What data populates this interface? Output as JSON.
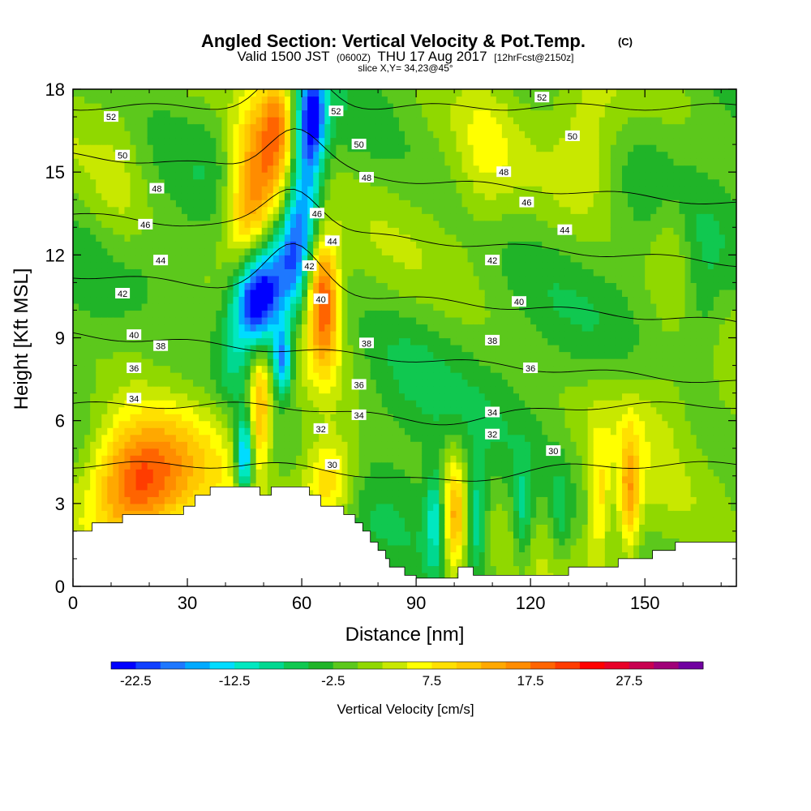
{
  "chart_data": {
    "type": "heatmap",
    "title": "Angled Section: Vertical Velocity & Pot.Temp.",
    "title_unit": "(C)",
    "subtitle_valid": "Valid 1500 JST",
    "subtitle_utc": "(0600Z)",
    "subtitle_date": "THU 17 Aug 2017",
    "subtitle_fcst": "[12hrFcst@2150z]",
    "slice_label": "slice X,Y= 34,23@45°",
    "xlabel": "Distance [nm]",
    "ylabel": "Height [Kft MSL]",
    "xlim": [
      0,
      174
    ],
    "ylim": [
      0,
      18
    ],
    "x_ticks": [
      0,
      30,
      60,
      90,
      120,
      150
    ],
    "y_ticks": [
      0,
      3,
      6,
      9,
      12,
      15,
      18
    ],
    "colorbar": {
      "label": "Vertical Velocity [cm/s]",
      "tick_labels": [
        "-22.5",
        "-12.5",
        "-2.5",
        "7.5",
        "17.5",
        "27.5"
      ],
      "tick_values": [
        -22.5,
        -12.5,
        -2.5,
        7.5,
        17.5,
        27.5
      ],
      "min": -25,
      "max": 35,
      "step": 2.5,
      "colors": [
        "#0000ff",
        "#1040ff",
        "#1e78ff",
        "#00aaff",
        "#00dcff",
        "#00e8c0",
        "#00d890",
        "#10c850",
        "#20b428",
        "#5cc81c",
        "#90d800",
        "#c8e800",
        "#ffff00",
        "#ffe000",
        "#ffc800",
        "#ffa800",
        "#ff8c00",
        "#ff6400",
        "#ff3c00",
        "#ff0000",
        "#e80028",
        "#c80050",
        "#a00078",
        "#7000a0"
      ]
    },
    "terrain_profile": [
      [
        0,
        2
      ],
      [
        5,
        2
      ],
      [
        5,
        2.3
      ],
      [
        13,
        2.3
      ],
      [
        13,
        2.6
      ],
      [
        29,
        2.6
      ],
      [
        29,
        2.9
      ],
      [
        32,
        2.9
      ],
      [
        32,
        3.3
      ],
      [
        36,
        3.3
      ],
      [
        36,
        3.6
      ],
      [
        49,
        3.6
      ],
      [
        49,
        3.3
      ],
      [
        52,
        3.3
      ],
      [
        52,
        3.6
      ],
      [
        62,
        3.6
      ],
      [
        62,
        3.3
      ],
      [
        65,
        3.3
      ],
      [
        65,
        2.9
      ],
      [
        71,
        2.9
      ],
      [
        71,
        2.6
      ],
      [
        74,
        2.6
      ],
      [
        74,
        2.3
      ],
      [
        76,
        2.3
      ],
      [
        76,
        2
      ],
      [
        78,
        2
      ],
      [
        78,
        1.6
      ],
      [
        80,
        1.6
      ],
      [
        80,
        1.3
      ],
      [
        82,
        1.3
      ],
      [
        82,
        1
      ],
      [
        83,
        1
      ],
      [
        83,
        0.7
      ],
      [
        87,
        0.7
      ],
      [
        87,
        0.4
      ],
      [
        90,
        0.4
      ],
      [
        90,
        0.3
      ],
      [
        101,
        0.3
      ],
      [
        101,
        0.7
      ],
      [
        105,
        0.7
      ],
      [
        105,
        0.4
      ],
      [
        130,
        0.4
      ],
      [
        130,
        0.7
      ],
      [
        143,
        0.7
      ],
      [
        143,
        1
      ],
      [
        152,
        1
      ],
      [
        152,
        1.3
      ],
      [
        158,
        1.3
      ],
      [
        158,
        1.6
      ],
      [
        174,
        1.6
      ]
    ],
    "velocity_features": [
      {
        "x": 48,
        "z": 10.2,
        "value": -22,
        "sx": 4,
        "sz": 1.2
      },
      {
        "x": 52,
        "z": 11.2,
        "value": -14,
        "sx": 6,
        "sz": 1.4
      },
      {
        "x": 55,
        "z": 8.2,
        "value": -18,
        "sx": 1.8,
        "sz": 0.9
      },
      {
        "x": 45,
        "z": 4.7,
        "value": -20,
        "sx": 1.6,
        "sz": 1.0
      },
      {
        "x": 42,
        "z": 8.3,
        "value": -6,
        "sx": 3,
        "sz": 1.5
      },
      {
        "x": 63,
        "z": 17.0,
        "value": -18,
        "sx": 2.4,
        "sz": 1.2
      },
      {
        "x": 61,
        "z": 14.5,
        "value": -14,
        "sx": 3,
        "sz": 2.2
      },
      {
        "x": 58,
        "z": 12.3,
        "value": -9,
        "sx": 3,
        "sz": 1.4
      },
      {
        "x": 49,
        "z": 15.0,
        "value": 17,
        "sx": 5,
        "sz": 2.2
      },
      {
        "x": 45,
        "z": 13.0,
        "value": 10,
        "sx": 4,
        "sz": 1.5
      },
      {
        "x": 54,
        "z": 17.0,
        "value": 12,
        "sx": 3,
        "sz": 1.5
      },
      {
        "x": 66,
        "z": 10.0,
        "value": 18,
        "sx": 3,
        "sz": 1.6
      },
      {
        "x": 64,
        "z": 11.5,
        "value": 9,
        "sx": 3,
        "sz": 1.2
      },
      {
        "x": 16,
        "z": 3.6,
        "value": 15,
        "sx": 8,
        "sz": 1.5
      },
      {
        "x": 25,
        "z": 4.3,
        "value": 9,
        "sx": 12,
        "sz": 1.6
      },
      {
        "x": 49,
        "z": 6.5,
        "value": 14,
        "sx": 2,
        "sz": 1.5
      },
      {
        "x": 67,
        "z": 3.8,
        "value": 13,
        "sx": 5,
        "sz": 1.2
      },
      {
        "x": 100,
        "z": 2.5,
        "value": 14,
        "sx": 2.2,
        "sz": 1.6
      },
      {
        "x": 95,
        "z": 2.5,
        "value": -10,
        "sx": 1.8,
        "sz": 1.3
      },
      {
        "x": 106,
        "z": 2.5,
        "value": -10,
        "sx": 1.8,
        "sz": 1.3
      },
      {
        "x": 118,
        "z": 2.5,
        "value": -8,
        "sx": 1.8,
        "sz": 1.3
      },
      {
        "x": 128,
        "z": 2.5,
        "value": -5,
        "sx": 1.8,
        "sz": 1.3
      },
      {
        "x": 138,
        "z": 3.0,
        "value": 9,
        "sx": 2,
        "sz": 1.6
      },
      {
        "x": 146,
        "z": 3.3,
        "value": 13,
        "sx": 2,
        "sz": 1.5
      },
      {
        "x": 135,
        "z": 16.0,
        "value": 6,
        "sx": 6,
        "sz": 1.8
      },
      {
        "x": 108,
        "z": 15.5,
        "value": 4,
        "sx": 5,
        "sz": 2.0
      },
      {
        "x": 157,
        "z": 12.5,
        "value": 5,
        "sx": 4,
        "sz": 1.5
      },
      {
        "x": 21,
        "z": 9.5,
        "value": 3,
        "sx": 8,
        "sz": 1.2
      },
      {
        "x": 12,
        "z": 14.5,
        "value": 3,
        "sx": 5,
        "sz": 2.5
      },
      {
        "x": 150,
        "z": 6.5,
        "value": 4,
        "sx": 10,
        "sz": 1.5
      },
      {
        "x": 165,
        "z": 9.5,
        "value": -4,
        "sx": 4,
        "sz": 2.0
      },
      {
        "x": 85,
        "z": 7.5,
        "value": -3,
        "sx": 10,
        "sz": 2.0
      }
    ],
    "theta_contour_levels": [
      30,
      32,
      34,
      36,
      38,
      40,
      42,
      44,
      46,
      48,
      50,
      52
    ],
    "theta_contour_labels": [
      {
        "text": "52",
        "x": 10,
        "z": 17.0
      },
      {
        "text": "52",
        "x": 69,
        "z": 17.2
      },
      {
        "text": "52",
        "x": 123,
        "z": 17.7
      },
      {
        "text": "50",
        "x": 13,
        "z": 15.6
      },
      {
        "text": "50",
        "x": 75,
        "z": 16.0
      },
      {
        "text": "50",
        "x": 131,
        "z": 16.3
      },
      {
        "text": "48",
        "x": 22,
        "z": 14.4
      },
      {
        "text": "48",
        "x": 77,
        "z": 14.8
      },
      {
        "text": "48",
        "x": 113,
        "z": 15.0
      },
      {
        "text": "46",
        "x": 19,
        "z": 13.1
      },
      {
        "text": "46",
        "x": 64,
        "z": 13.5
      },
      {
        "text": "46",
        "x": 119,
        "z": 13.9
      },
      {
        "text": "44",
        "x": 23,
        "z": 11.8
      },
      {
        "text": "44",
        "x": 68,
        "z": 12.5
      },
      {
        "text": "44",
        "x": 129,
        "z": 12.9
      },
      {
        "text": "42",
        "x": 13,
        "z": 10.6
      },
      {
        "text": "42",
        "x": 62,
        "z": 11.6
      },
      {
        "text": "42",
        "x": 110,
        "z": 11.8
      },
      {
        "text": "40",
        "x": 16,
        "z": 9.1
      },
      {
        "text": "40",
        "x": 65,
        "z": 10.4
      },
      {
        "text": "40",
        "x": 117,
        "z": 10.3
      },
      {
        "text": "38",
        "x": 23,
        "z": 8.7
      },
      {
        "text": "38",
        "x": 77,
        "z": 8.8
      },
      {
        "text": "38",
        "x": 110,
        "z": 8.9
      },
      {
        "text": "36",
        "x": 16,
        "z": 7.9
      },
      {
        "text": "36",
        "x": 75,
        "z": 7.3
      },
      {
        "text": "36",
        "x": 120,
        "z": 7.9
      },
      {
        "text": "34",
        "x": 16,
        "z": 6.8
      },
      {
        "text": "34",
        "x": 75,
        "z": 6.2
      },
      {
        "text": "34",
        "x": 110,
        "z": 6.3
      },
      {
        "text": "32",
        "x": 65,
        "z": 5.7
      },
      {
        "text": "32",
        "x": 110,
        "z": 5.5
      },
      {
        "text": "30",
        "x": 68,
        "z": 4.4
      },
      {
        "text": "30",
        "x": 126,
        "z": 4.9
      }
    ]
  }
}
